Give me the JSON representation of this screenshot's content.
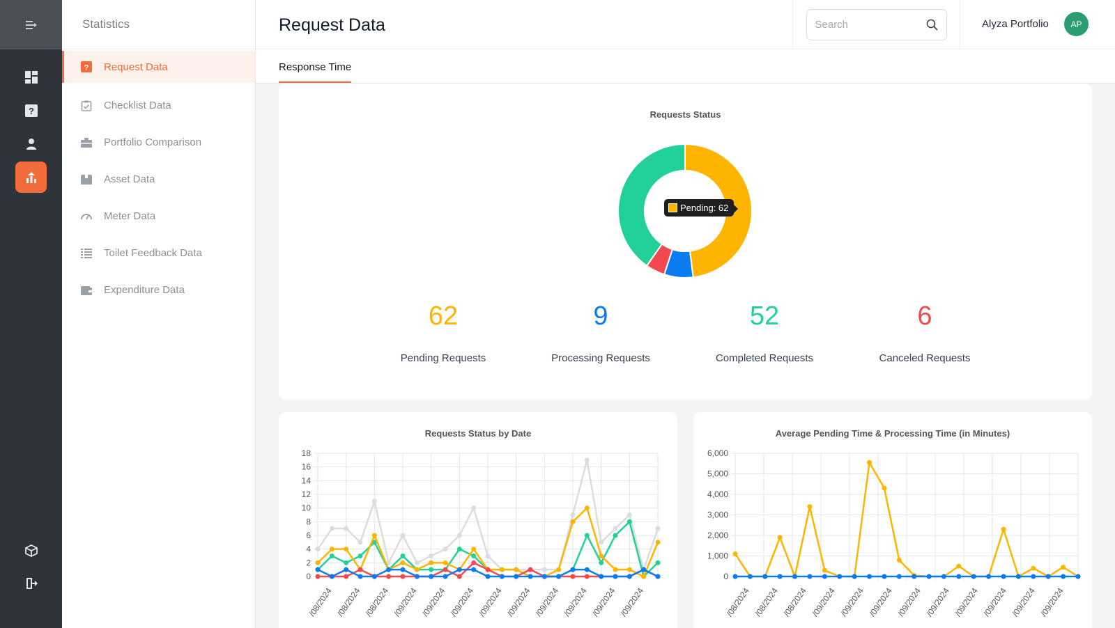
{
  "sidebar_title": "Statistics",
  "nav": [
    {
      "label": "Request Data",
      "icon": "question-box-icon",
      "active": true
    },
    {
      "label": "Checklist Data",
      "icon": "checklist-icon",
      "active": false
    },
    {
      "label": "Portfolio Comparison",
      "icon": "briefcase-icon",
      "active": false
    },
    {
      "label": "Asset Data",
      "icon": "box-icon",
      "active": false
    },
    {
      "label": "Meter Data",
      "icon": "gauge-icon",
      "active": false
    },
    {
      "label": "Toilet Feedback Data",
      "icon": "list-icon",
      "active": false
    },
    {
      "label": "Expenditure Data",
      "icon": "wallet-icon",
      "active": false
    }
  ],
  "header": {
    "title": "Request Data",
    "search_placeholder": "Search",
    "user_name": "Alyza Portfolio",
    "avatar_initials": "AP"
  },
  "tabs": [
    {
      "label": "Response Time",
      "active": true
    }
  ],
  "colors": {
    "accent": "#f26b3a",
    "pending": "#ffb400",
    "processing": "#0a7cf0",
    "completed": "#22d19a",
    "canceled": "#f2494f",
    "total": "#dcdcdc"
  },
  "stats": [
    {
      "value": "62",
      "label": "Pending Requests",
      "color": "#ffb400"
    },
    {
      "value": "9",
      "label": "Processing Requests",
      "color": "#0a7cf0"
    },
    {
      "value": "52",
      "label": "Completed Requests",
      "color": "#22d19a"
    },
    {
      "value": "6",
      "label": "Canceled Requests",
      "color": "#f2494f"
    }
  ],
  "chart_data": [
    {
      "type": "pie",
      "title": "Requests Status",
      "labels": [
        "Pending",
        "Processing",
        "Canceled",
        "Completed"
      ],
      "values": [
        62,
        9,
        6,
        52
      ],
      "colors": [
        "#ffb400",
        "#0a7cf0",
        "#f2494f",
        "#22d19a"
      ],
      "tooltip": "Pending: 62"
    },
    {
      "type": "line",
      "title": "Requests Status by Date",
      "x_tick_labels": [
        "/08/2024",
        "/08/2024",
        "/08/2024",
        "/09/2024",
        "/09/2024",
        "/09/2024",
        "/09/2024",
        "/09/2024",
        "/09/2024",
        "/09/2024",
        "/09/2024",
        "/09/2024"
      ],
      "ylim": [
        0,
        18
      ],
      "yticks": [
        0,
        2,
        4,
        6,
        8,
        10,
        12,
        14,
        16,
        18
      ],
      "grid": true,
      "series": [
        {
          "color": "#dcdcdc",
          "values": [
            4,
            7,
            7,
            5,
            11,
            2,
            6,
            2,
            3,
            4,
            6,
            10,
            3,
            1,
            1,
            1,
            1,
            1,
            9,
            17,
            5,
            7,
            9,
            1,
            7
          ]
        },
        {
          "color": "#22d19a",
          "values": [
            1,
            3,
            2,
            3,
            5,
            1,
            3,
            1,
            1,
            1,
            4,
            3,
            1,
            1,
            1,
            0,
            0,
            0,
            1,
            6,
            2,
            6,
            8,
            0,
            2
          ]
        },
        {
          "color": "#ffb400",
          "values": [
            2,
            4,
            4,
            1,
            6,
            1,
            2,
            1,
            2,
            2,
            1,
            4,
            1,
            1,
            1,
            0,
            0,
            1,
            8,
            10,
            3,
            1,
            1,
            0,
            5
          ]
        },
        {
          "color": "#f2494f",
          "values": [
            0,
            0,
            0,
            1,
            0,
            0,
            0,
            0,
            0,
            1,
            0,
            2,
            1,
            0,
            0,
            1,
            0,
            0,
            0,
            0,
            0,
            0,
            0,
            1,
            0
          ]
        },
        {
          "color": "#0a7cf0",
          "values": [
            1,
            0,
            1,
            0,
            0,
            1,
            1,
            0,
            0,
            0,
            1,
            1,
            0,
            0,
            0,
            0,
            0,
            0,
            1,
            1,
            0,
            0,
            0,
            1,
            0
          ]
        }
      ]
    },
    {
      "type": "line",
      "title": "Average Pending Time & Processing Time (in Minutes)",
      "x_tick_labels": [
        "/08/2024",
        "/08/2024",
        "/08/2024",
        "/09/2024",
        "/09/2024",
        "/09/2024",
        "/09/2024",
        "/09/2024",
        "/09/2024",
        "/09/2024",
        "/09/2024",
        "/09/2024"
      ],
      "ylim": [
        0,
        6000
      ],
      "yticks": [
        "0",
        "1,000",
        "2,000",
        "3,000",
        "4,000",
        "5,000",
        "6,000"
      ],
      "grid": true,
      "series": [
        {
          "color": "#ffb400",
          "values": [
            1100,
            0,
            0,
            1900,
            0,
            3400,
            300,
            0,
            0,
            5550,
            4300,
            800,
            50,
            0,
            0,
            500,
            0,
            0,
            2300,
            0,
            400,
            0,
            450,
            0
          ]
        },
        {
          "color": "#0a7cf0",
          "values": [
            0,
            0,
            0,
            0,
            0,
            0,
            0,
            0,
            0,
            0,
            0,
            0,
            0,
            0,
            0,
            0,
            0,
            0,
            0,
            0,
            0,
            0,
            0,
            0
          ]
        }
      ]
    }
  ]
}
